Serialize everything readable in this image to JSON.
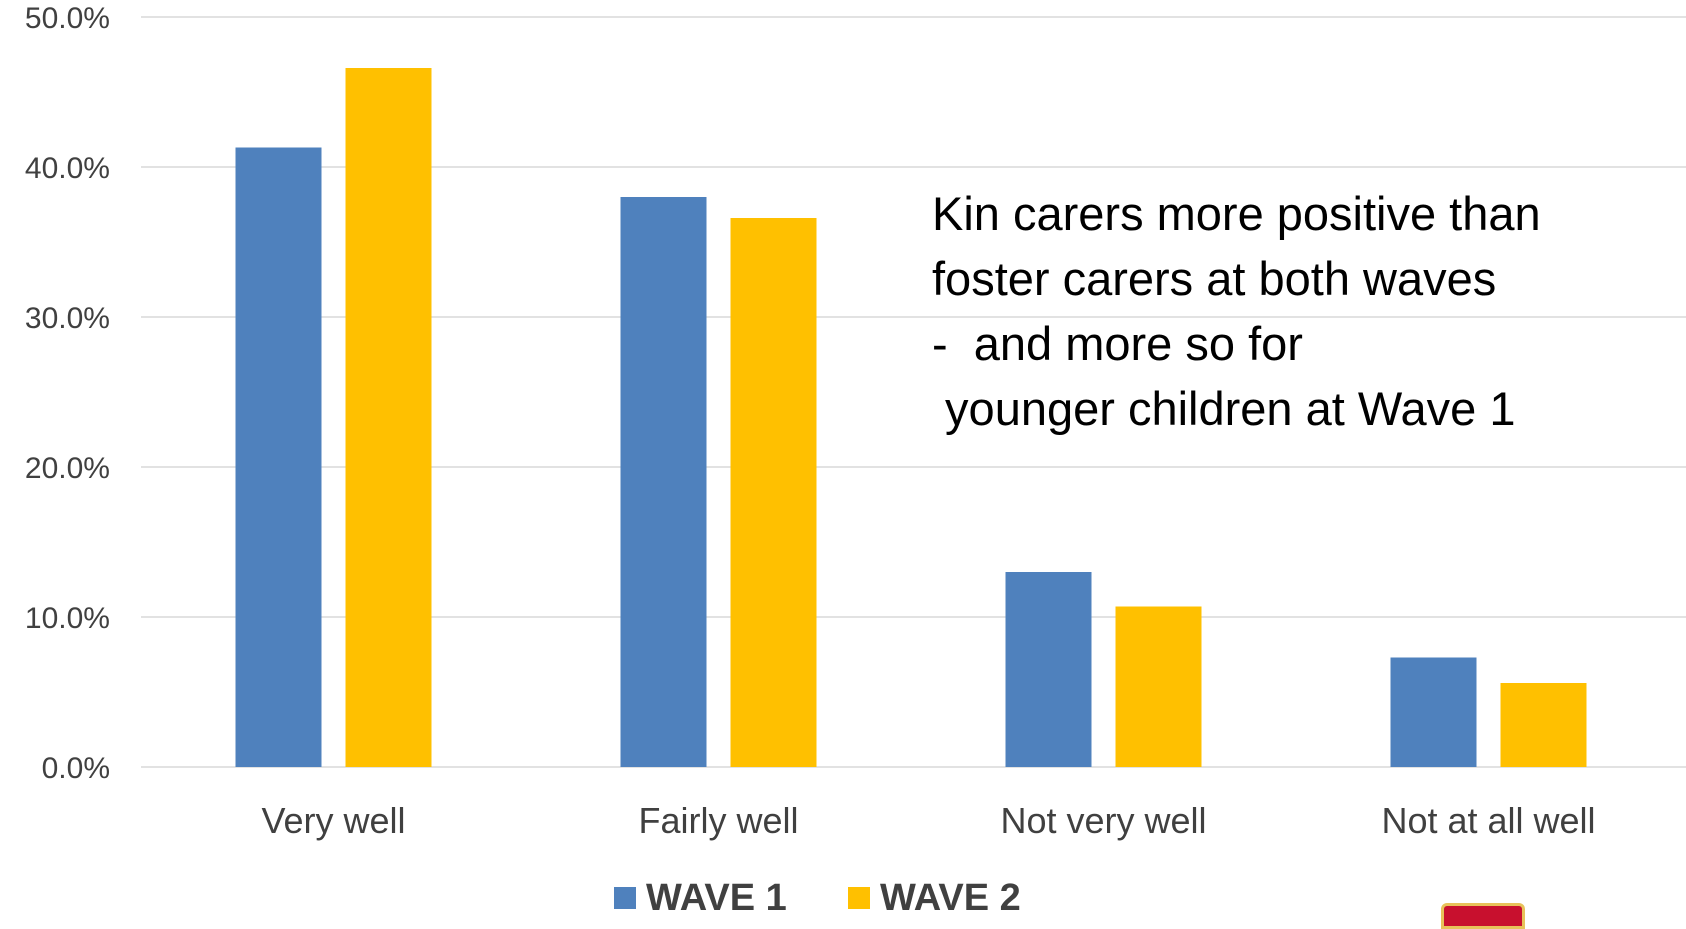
{
  "title_fragment": "",
  "annotation": {
    "lines": [
      "Kin carers more positive than",
      "foster carers at both waves",
      "-  and more so for",
      " younger children at Wave 1"
    ]
  },
  "chart_data": {
    "type": "bar",
    "categories": [
      "Very well",
      "Fairly well",
      "Not very well",
      "Not at all well"
    ],
    "series": [
      {
        "name": "WAVE 1",
        "color": "#4f81bd",
        "values": [
          41.3,
          38.0,
          13.0,
          7.3
        ]
      },
      {
        "name": "WAVE 2",
        "color": "#ffc000",
        "values": [
          46.6,
          36.6,
          10.7,
          5.6
        ]
      }
    ],
    "title": "",
    "xlabel": "",
    "ylabel": "",
    "ylim": [
      0,
      50
    ],
    "yticks": [
      "0.0%",
      "10.0%",
      "20.0%",
      "30.0%",
      "40.0%",
      "50.0%"
    ],
    "grid": true,
    "legend": "bottom"
  }
}
